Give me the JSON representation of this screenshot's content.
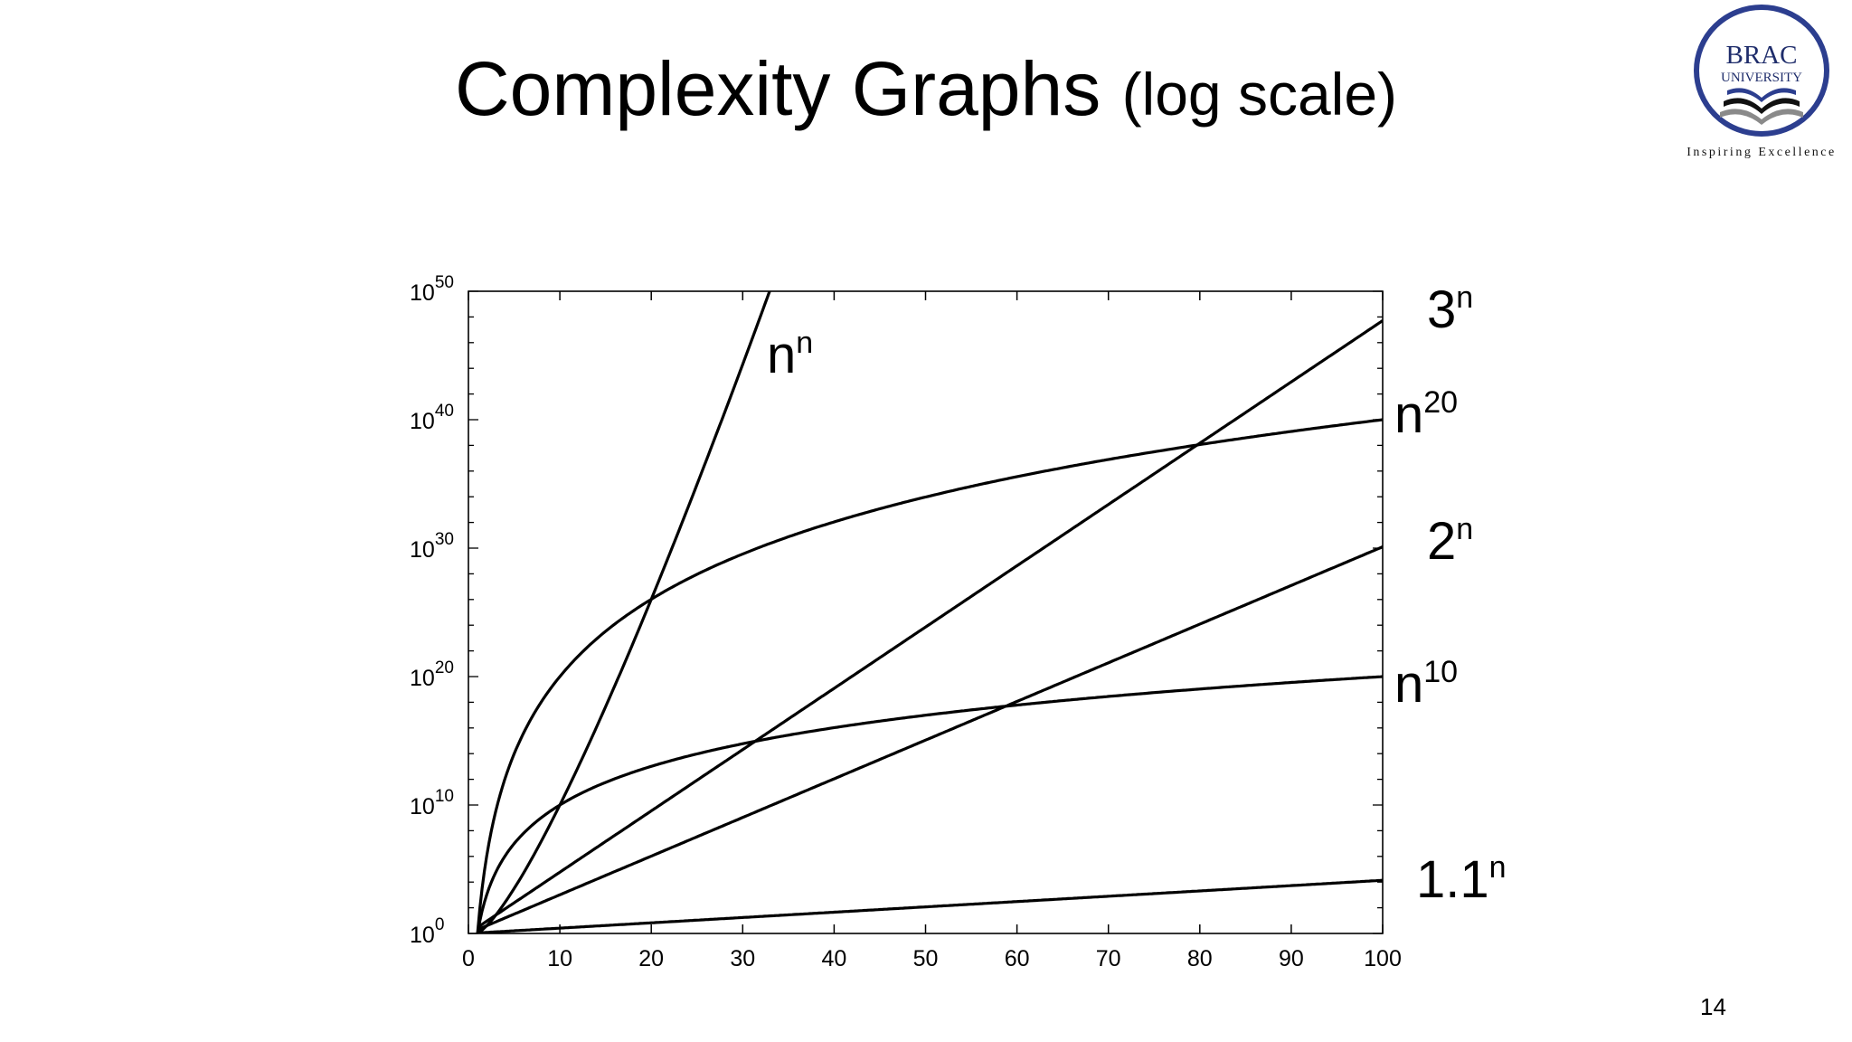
{
  "slide": {
    "title_main": "Complexity Graphs",
    "title_sub": "(log scale)",
    "page_number": "14"
  },
  "logo": {
    "line1": "BRAC",
    "line2": "UNIVERSITY",
    "tagline": "Inspiring Excellence",
    "color_ring": "#2c3e8f",
    "color_book": "#8a8a8a"
  },
  "chart_data": {
    "type": "line",
    "title": "",
    "xlabel": "",
    "ylabel": "",
    "xlim": [
      0,
      100
    ],
    "ylim_exponent": [
      0,
      50
    ],
    "y_scale": "log",
    "grid": false,
    "x_ticks": [
      "0",
      "10",
      "20",
      "30",
      "40",
      "50",
      "60",
      "70",
      "80",
      "90",
      "100"
    ],
    "y_ticks": [
      {
        "base": "10",
        "exp": "0"
      },
      {
        "base": "10",
        "exp": "10"
      },
      {
        "base": "10",
        "exp": "20"
      },
      {
        "base": "10",
        "exp": "30"
      },
      {
        "base": "10",
        "exp": "40"
      },
      {
        "base": "10",
        "exp": "50"
      }
    ],
    "x": [
      1,
      2,
      3,
      4,
      5,
      6,
      7,
      8,
      9,
      10,
      12,
      14,
      16,
      18,
      20,
      22,
      24,
      26,
      28,
      30,
      32.5,
      35,
      40,
      45,
      50,
      55,
      60,
      65,
      70,
      75,
      80,
      85,
      90,
      95,
      100
    ],
    "series": [
      {
        "name_base": "n",
        "name_sup": "n",
        "formula": "n^n"
      },
      {
        "name_base": "3",
        "name_sup": "n",
        "formula": "3^n"
      },
      {
        "name_base": "n",
        "name_sup": "20",
        "formula": "n^20"
      },
      {
        "name_base": "2",
        "name_sup": "n",
        "formula": "2^n"
      },
      {
        "name_base": "n",
        "name_sup": "10",
        "formula": "n^10"
      },
      {
        "name_base": "1.1",
        "name_sup": "n",
        "formula": "1.1^n"
      }
    ],
    "note": "values are computed by the formula and rendered as log10 exponents"
  }
}
